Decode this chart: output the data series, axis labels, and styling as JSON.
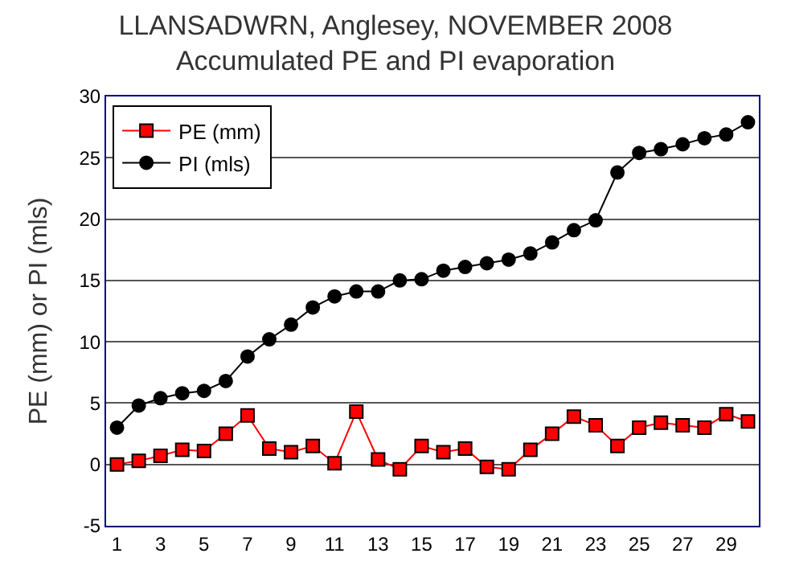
{
  "chart_data": {
    "type": "line",
    "title": "LLANSADWRN, Anglesey, NOVEMBER 2008\nAccumulated PE and PI evaporation",
    "ylabel": "PE (mm) or PI (mls)",
    "x": [
      1,
      2,
      3,
      4,
      5,
      6,
      7,
      8,
      9,
      10,
      11,
      12,
      13,
      14,
      15,
      16,
      17,
      18,
      19,
      20,
      21,
      22,
      23,
      24,
      25,
      26,
      27,
      28,
      29,
      30
    ],
    "series": [
      {
        "name": "PE (mm)",
        "color": "#ff0000",
        "marker": "square",
        "values": [
          0.0,
          0.3,
          0.7,
          1.2,
          1.1,
          2.5,
          4.0,
          1.3,
          1.0,
          1.5,
          0.1,
          4.3,
          0.4,
          -0.4,
          1.5,
          1.0,
          1.3,
          -0.2,
          -0.4,
          1.2,
          2.5,
          3.9,
          3.2,
          1.5,
          3.0,
          3.4,
          3.2,
          3.0,
          4.1,
          3.5
        ]
      },
      {
        "name": "PI (mls)",
        "color": "#000000",
        "marker": "circle",
        "values": [
          3.0,
          4.8,
          5.4,
          5.8,
          6.0,
          6.8,
          8.8,
          10.2,
          11.4,
          12.8,
          13.7,
          14.1,
          14.1,
          15.0,
          15.1,
          15.8,
          16.1,
          16.4,
          16.7,
          17.2,
          18.1,
          19.1,
          19.9,
          23.8,
          25.4,
          25.7,
          26.1,
          26.6,
          26.9,
          27.9
        ]
      }
    ],
    "xlim": [
      0.5,
      30.5
    ],
    "xticks": [
      1,
      3,
      5,
      7,
      9,
      11,
      13,
      15,
      17,
      19,
      21,
      23,
      25,
      27,
      29
    ],
    "ylim": [
      -5,
      30
    ],
    "yticks": [
      -5,
      0,
      5,
      10,
      15,
      20,
      25,
      30
    ],
    "grid": "y",
    "legend": "top left",
    "line_style": "solid"
  }
}
